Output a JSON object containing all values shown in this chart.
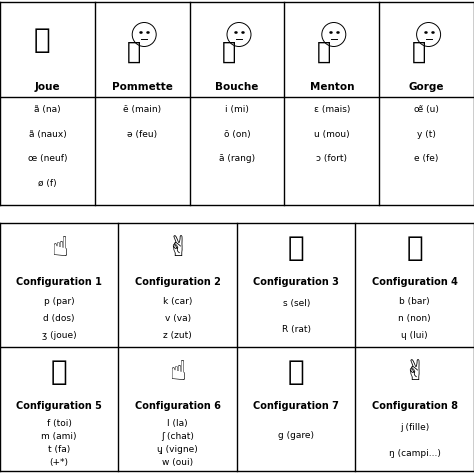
{
  "bg": "#ffffff",
  "top_headers": [
    "Joue",
    "Pommette",
    "Bouche",
    "Menton",
    "Gorge"
  ],
  "top_vowels_by_col": [
    [
      "ã (na)",
      "ã (naux)",
      "œ (neuf)",
      "ø (f)"
    ],
    [
      "ẽ (main)",
      "ə (feu)",
      "",
      ""
    ],
    [
      "i (mi)",
      "õ (on)",
      "ā (rang)",
      ""
    ],
    [
      "ɛ (mais)",
      "u (mou)",
      "ɔ (fort)",
      ""
    ],
    [
      "œ̃ (u)",
      "y (t)",
      "e (fe)",
      ""
    ]
  ],
  "configs": [
    {
      "name": "Configuration 1",
      "hand": "c1",
      "items": [
        "p (par)",
        "d (dos)",
        "ʒ (joue)"
      ]
    },
    {
      "name": "Configuration 2",
      "hand": "c2",
      "items": [
        "k (car)",
        "v (va)",
        "z (zut)"
      ]
    },
    {
      "name": "Configuration 3",
      "hand": "c3",
      "items": [
        "s (sel)",
        "R (rat)"
      ]
    },
    {
      "name": "Configuration 4",
      "hand": "c4",
      "items": [
        "b (bar)",
        "n (non)",
        "ɥ (lui)"
      ]
    },
    {
      "name": "Configuration 5",
      "hand": "c5",
      "items": [
        "f (toi)",
        "m (ami)",
        "t (fa)",
        "(+*)"
      ]
    },
    {
      "name": "Configuration 6",
      "hand": "c6",
      "items": [
        "l (la)",
        "ʃ (chat)",
        "ɥ̝ (vigne)",
        "w (oui)"
      ]
    },
    {
      "name": "Configuration 7",
      "hand": "c7",
      "items": [
        "g (gare)"
      ]
    },
    {
      "name": "Configuration 8",
      "hand": "c8",
      "items": [
        "j (fille)",
        "ŋ (campi...)"
      ]
    }
  ]
}
